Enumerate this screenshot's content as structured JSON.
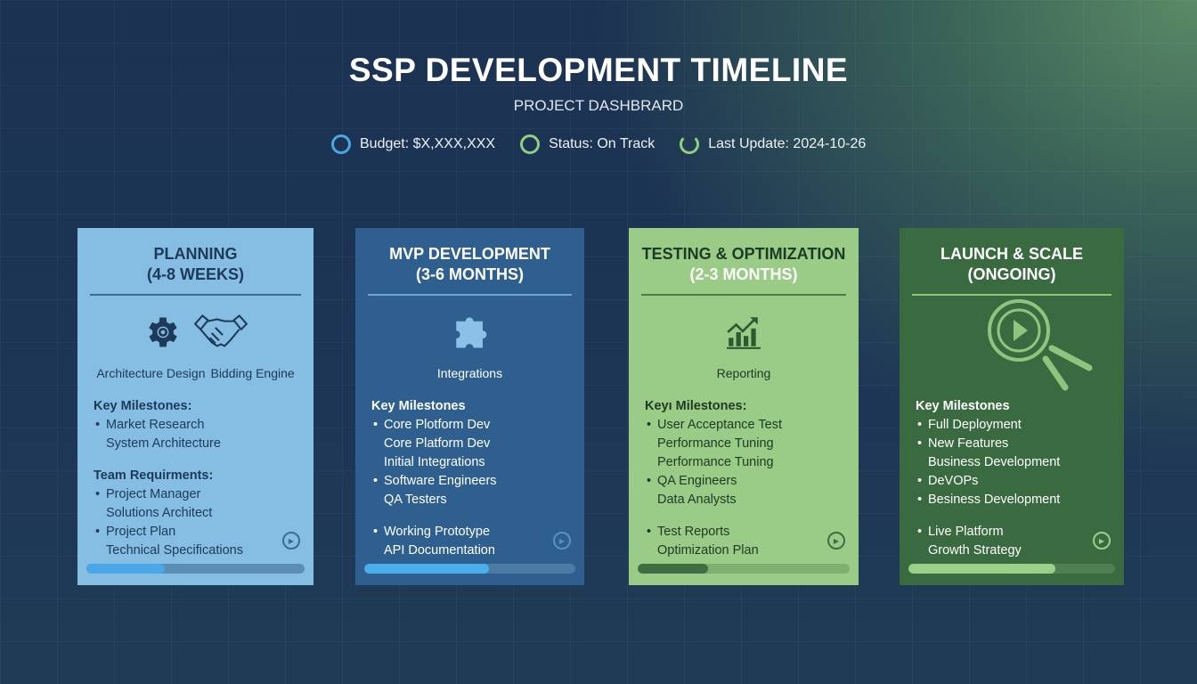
{
  "header": {
    "title": "SSP DEVELOPMENT TIMELINE",
    "subtitle": "PROJECT DASHBRARD"
  },
  "stats": [
    {
      "label": "Budget: $X,XXX,XXX",
      "color": "#4aa8e0"
    },
    {
      "label": "Status: On Track",
      "color": "#8fd07e"
    },
    {
      "label": "Last Update: 2024-10-26",
      "color": "#8fd07e"
    }
  ],
  "cards": [
    {
      "title1": "PLANNING",
      "title2": "(4-8 WEEKS)",
      "bg": "#86bde2",
      "fg": "#1d3a58",
      "rule": "#3d6a8e",
      "icons": [
        "gear-icon",
        "handshake-icon"
      ],
      "icon_labels": [
        "Architecture Design",
        "Bidding Engine"
      ],
      "progress": 0.36,
      "bar_bg": "#5b8eb5",
      "bar_fill": "#4aa8e8",
      "groups": [
        {
          "heading": "Key Milestones:",
          "lines": [
            {
              "text": "Market Research",
              "bullet": true
            },
            {
              "text": "System Architecture",
              "bullet": false
            }
          ]
        },
        {
          "heading": "Team Requirments:",
          "lines": [
            {
              "text": "Project Manager",
              "bullet": true
            },
            {
              "text": "Solutions Architect",
              "bullet": false
            },
            {
              "text": "Project Plan",
              "bullet": true
            },
            {
              "text": "Technical Specifications",
              "bullet": false
            }
          ]
        }
      ]
    },
    {
      "title1": "MVP DEVELOPMENT",
      "title2": "(3-6 MONTHS)",
      "bg": "#2f5f8e",
      "fg": "#ffffff",
      "rule": "#6fa5d3",
      "icons": [
        "puzzle-icon"
      ],
      "icon_labels": [
        "Integrations"
      ],
      "progress": 0.59,
      "bar_bg": "#4a7aa5",
      "bar_fill": "#4aaeea",
      "groups": [
        {
          "heading": "Key Milestones",
          "lines": [
            {
              "text": "Core Plotform Dev",
              "bullet": true
            },
            {
              "text": "Core Platform Dev",
              "bullet": false
            },
            {
              "text": "Initial Integrations",
              "bullet": false
            },
            {
              "text": "Software Engineers",
              "bullet": true
            },
            {
              "text": "QA Testers",
              "bullet": false
            }
          ]
        },
        {
          "heading": "",
          "lines": [
            {
              "text": "Working Prototype",
              "bullet": true
            },
            {
              "text": "API Documentation",
              "bullet": false
            }
          ]
        }
      ]
    },
    {
      "title1": "TESTING & OPTIMIZATION",
      "title2": "(2-3 MONTHS)",
      "bg": "#9acb87",
      "fg": "#1d3a25",
      "title2_color": "#ffffff",
      "rule": "#4f7d4a",
      "icons": [
        "bar-chart-icon"
      ],
      "icon_labels": [
        "Reporting"
      ],
      "progress": 0.33,
      "bar_bg": "#7fb06f",
      "bar_fill": "#3f6e43",
      "groups": [
        {
          "heading": "Keyı Milestones:",
          "lines": [
            {
              "text": "User Acceptance Test",
              "bullet": true
            },
            {
              "text": "Performance Tuning",
              "bullet": false
            },
            {
              "text": "Performance Tuning",
              "bullet": false
            },
            {
              "text": "QA Engineers",
              "bullet": true
            },
            {
              "text": "Data Analysts",
              "bullet": false
            }
          ]
        },
        {
          "heading": "",
          "lines": [
            {
              "text": "Test Reports",
              "bullet": true
            },
            {
              "text": "Optimization Plan",
              "bullet": false
            }
          ]
        }
      ]
    },
    {
      "title1": "LAUNCH & SCALE",
      "title2": "(ONGOING)",
      "bg": "#3a6a40",
      "fg": "#ffffff",
      "rule": "#8fc47f",
      "icons": [
        "magnifier-play-icon"
      ],
      "icon_labels": [],
      "progress": 0.71,
      "bar_bg": "#4f7f52",
      "bar_fill": "#9bd08b",
      "groups": [
        {
          "heading": "Key Milestones",
          "lines": [
            {
              "text": "Full Deployment",
              "bullet": true
            },
            {
              "text": "New Features",
              "bullet": true
            },
            {
              "text": "Business Development",
              "bullet": false
            },
            {
              "text": "DeVOPs",
              "bullet": true
            },
            {
              "text": "Besiness Development",
              "bullet": true
            }
          ]
        },
        {
          "heading": "",
          "lines": [
            {
              "text": "Live Platform",
              "bullet": true
            },
            {
              "text": "Growth Strategy",
              "bullet": false
            }
          ]
        }
      ]
    }
  ]
}
